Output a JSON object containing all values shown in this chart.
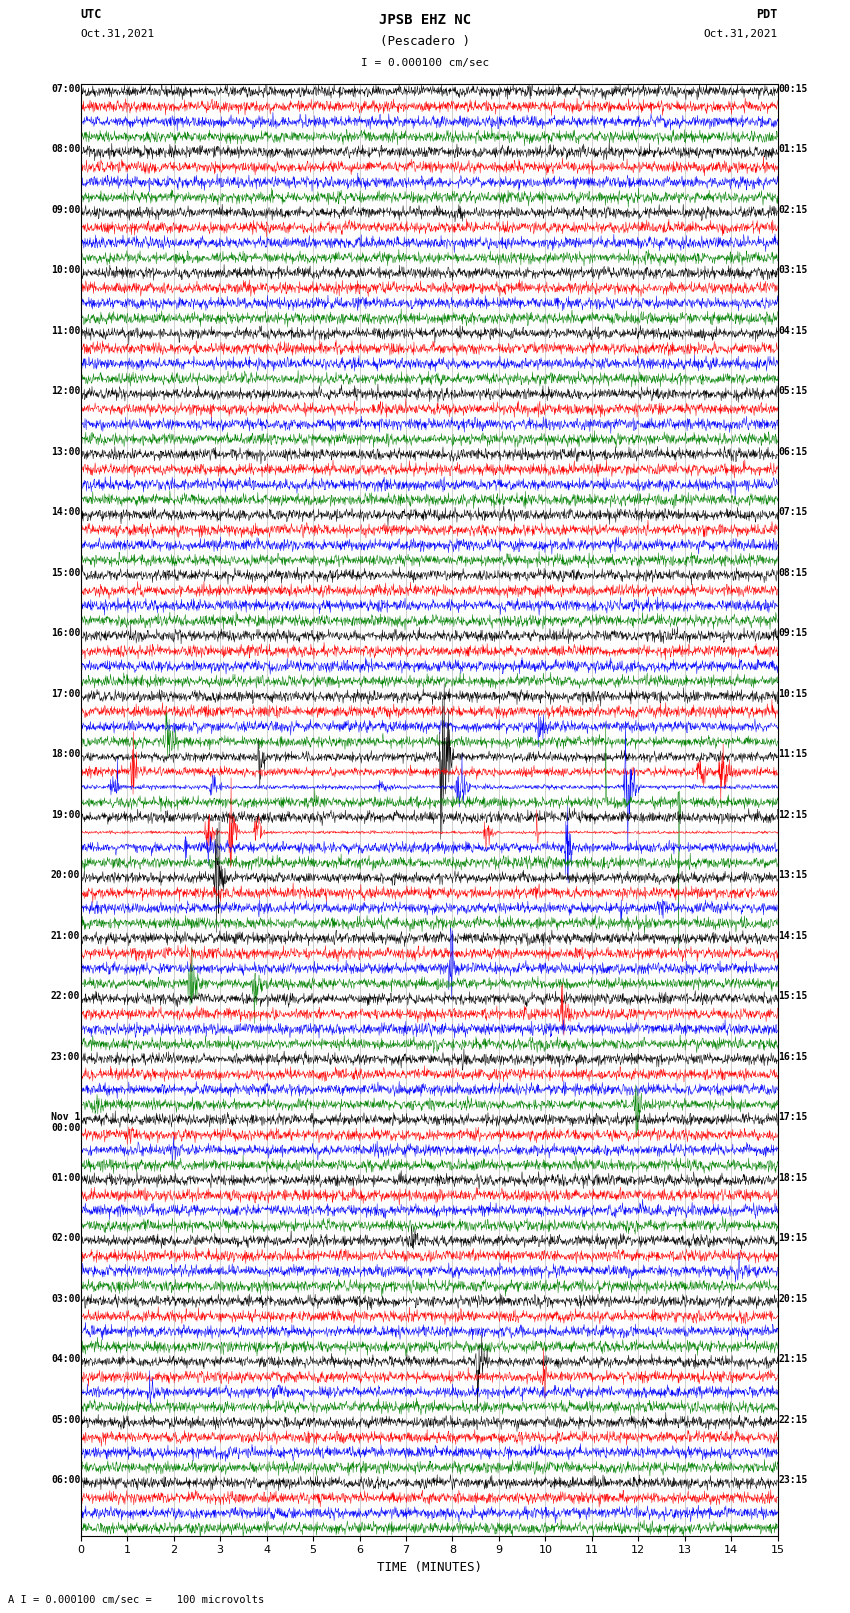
{
  "title_line1": "JPSB EHZ NC",
  "title_line2": "(Pescadero )",
  "scale_text": "I = 0.000100 cm/sec",
  "utc_label": "UTC",
  "utc_date": "Oct.31,2021",
  "pdt_label": "PDT",
  "pdt_date": "Oct.31,2021",
  "xlabel": "TIME (MINUTES)",
  "footnote": "A I = 0.000100 cm/sec =    100 microvolts",
  "left_times": [
    "07:00",
    "08:00",
    "09:00",
    "10:00",
    "11:00",
    "12:00",
    "13:00",
    "14:00",
    "15:00",
    "16:00",
    "17:00",
    "18:00",
    "19:00",
    "20:00",
    "21:00",
    "22:00",
    "23:00",
    "Nov 1\n00:00",
    "01:00",
    "02:00",
    "03:00",
    "04:00",
    "05:00",
    "06:00"
  ],
  "right_times": [
    "00:15",
    "01:15",
    "02:15",
    "03:15",
    "04:15",
    "05:15",
    "06:15",
    "07:15",
    "08:15",
    "09:15",
    "10:15",
    "11:15",
    "12:15",
    "13:15",
    "14:15",
    "15:15",
    "16:15",
    "17:15",
    "18:15",
    "19:15",
    "20:15",
    "21:15",
    "22:15",
    "23:15"
  ],
  "n_rows": 24,
  "traces_per_row": 4,
  "trace_colors": [
    "black",
    "red",
    "blue",
    "green"
  ],
  "bg_color": "white",
  "trace_lw": 0.35,
  "fig_width": 8.5,
  "fig_height": 16.13,
  "dpi": 100,
  "xlim": [
    0,
    15
  ],
  "xticks": [
    0,
    1,
    2,
    3,
    4,
    5,
    6,
    7,
    8,
    9,
    10,
    11,
    12,
    13,
    14,
    15
  ],
  "noise_seed": 42,
  "n_points": 1800
}
